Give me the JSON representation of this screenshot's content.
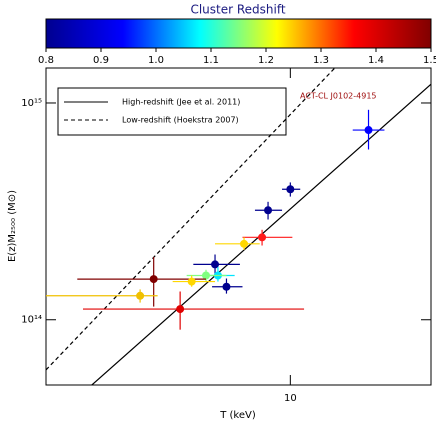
{
  "chart_data": {
    "type": "scatter",
    "colorbar_title": "Cluster Redshift",
    "colorbar_lim": [
      0.8,
      1.5
    ],
    "colorbar_ticks": [
      0.8,
      0.9,
      {
        "value": 1,
        "label": "1.0"
      },
      1.1,
      1.2,
      1.3,
      1.4,
      1.5
    ],
    "colormap": [
      "#00008f",
      "#0000ff",
      "#00ffff",
      "#ffff00",
      "#ff0000",
      "#800000"
    ],
    "xlabel": "T (keV)",
    "ylabel": "E(z)M₂₅₀₀ (M⊙)",
    "log_x": true,
    "log_y": true,
    "xlim": [
      3,
      20
    ],
    "ylim": [
      50000000000000,
      1450000000000000
    ],
    "xticks": [
      10
    ],
    "yticks": [
      {
        "value": 100000000000000,
        "label": "10¹⁴"
      },
      {
        "value": 1000000000000000,
        "label": "10¹⁵"
      }
    ],
    "annotation": "ACT-CL J0102-4915",
    "annotation_color": "#a01010",
    "lines": [
      {
        "name": "High-redshift (Jee et al. 2011)",
        "dash": false,
        "x": [
          3.76,
          20
        ],
        "y": [
          50000000000000,
          1220000000000000
        ]
      },
      {
        "name": "Low-redshift (Hoekstra 2007)",
        "dash": true,
        "x": [
          3,
          12.45
        ],
        "y": [
          58700000000000,
          1450000000000000
        ]
      }
    ],
    "points": {
      "x": [
        14.7,
        10.0,
        8.96,
        8.7,
        7.96,
        6.9,
        7.0,
        6.6,
        5.1,
        6.15,
        7.3,
        4.77,
        5.81
      ],
      "x_low": [
        13.6,
        9.6,
        8.4,
        7.9,
        6.9,
        6.2,
        6.5,
        6.0,
        3.5,
        5.6,
        6.8,
        3.0,
        3.6
      ],
      "x_high": [
        15.9,
        10.5,
        9.6,
        10.1,
        8.6,
        7.8,
        7.6,
        7.3,
        6.6,
        6.9,
        7.9,
        5.2,
        10.7
      ],
      "y": [
        750000000000000,
        400000000000000,
        320000000000000,
        240000000000000,
        224000000000000,
        180000000000000,
        160000000000000,
        160000000000000,
        154000000000000,
        150000000000000,
        142000000000000,
        129000000000000,
        112000000000000
      ],
      "y_low": [
        610000000000000,
        370000000000000,
        290000000000000,
        220000000000000,
        210000000000000,
        160000000000000,
        150000000000000,
        150000000000000,
        115000000000000,
        142000000000000,
        132000000000000,
        120000000000000,
        90000000000000
      ],
      "y_high": [
        930000000000000,
        430000000000000,
        350000000000000,
        260000000000000,
        240000000000000,
        200000000000000,
        175000000000000,
        170000000000000,
        195000000000000,
        160000000000000,
        155000000000000,
        138000000000000,
        135000000000000
      ],
      "colors": [
        "#0000ff",
        "#00008f",
        "#00008f",
        "#ff1a1a",
        "#ffd700",
        "#00008f",
        "#00e5ff",
        "#80ff80",
        "#800000",
        "#ffd700",
        "#00008f",
        "#f0c000",
        "#e00000"
      ]
    }
  }
}
